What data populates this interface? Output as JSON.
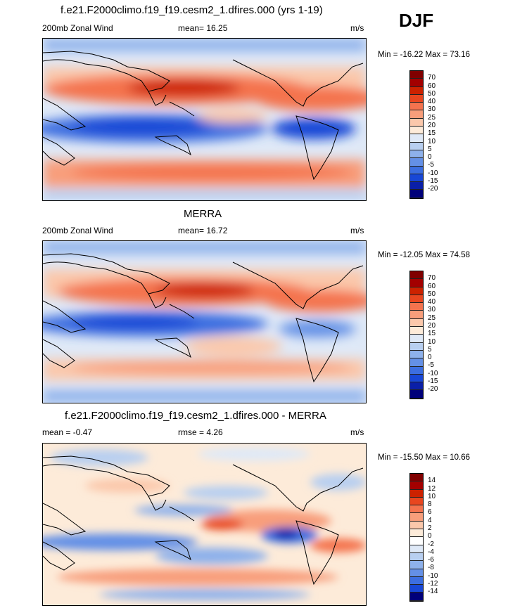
{
  "season": "DJF",
  "panels": [
    {
      "title": "f.e21.F2000climo.f19_f19.cesm2_1.dfires.000 (yrs 1-19)",
      "left_label": "200mb Zonal Wind",
      "mean_label": "mean=  16.25",
      "units": "m/s",
      "minmax": "Min = -16.22 Max =  73.16",
      "colorbar_labels": [
        "70",
        "60",
        "50",
        "40",
        "30",
        "25",
        "20",
        "15",
        "10",
        "5",
        "0",
        "-5",
        "-10",
        "-15",
        "-20"
      ]
    },
    {
      "title": "MERRA",
      "left_label": "200mb Zonal Wind",
      "mean_label": "mean=  16.72",
      "units": "m/s",
      "minmax": "Min = -12.05 Max =  74.58",
      "colorbar_labels": [
        "70",
        "60",
        "50",
        "40",
        "30",
        "25",
        "20",
        "15",
        "10",
        "5",
        "0",
        "-5",
        "-10",
        "-15",
        "-20"
      ]
    },
    {
      "title": "f.e21.F2000climo.f19_f19.cesm2_1.dfires.000 - MERRA",
      "left_label": "mean =  -0.47",
      "mean_label": "rmse =   4.26",
      "units": "m/s",
      "minmax": "Min = -15.50 Max =  10.66",
      "colorbar_labels": [
        "14",
        "12",
        "10",
        "8",
        "6",
        "4",
        "2",
        "0",
        "-2",
        "-4",
        "-6",
        "-8",
        "-10",
        "-12",
        "-14"
      ]
    }
  ],
  "colors": {
    "levels_fields": [
      "#800000",
      "#a30000",
      "#cc2200",
      "#e8461f",
      "#f4734e",
      "#f89e7b",
      "#fbc8ab",
      "#fdebd9",
      "#dfe9f7",
      "#b8cff0",
      "#8eb1eb",
      "#6490e6",
      "#3c6ee0",
      "#1847d6",
      "#0a1fa8",
      "#00007a"
    ],
    "levels_diff": [
      "#800000",
      "#a30000",
      "#cc2200",
      "#e8461f",
      "#f4734e",
      "#f89e7b",
      "#fbc8ab",
      "#fdebd9",
      "#ffffff",
      "#dfe9f7",
      "#b8cff0",
      "#8eb1eb",
      "#6490e6",
      "#3c6ee0",
      "#1847d6",
      "#00007a"
    ]
  }
}
